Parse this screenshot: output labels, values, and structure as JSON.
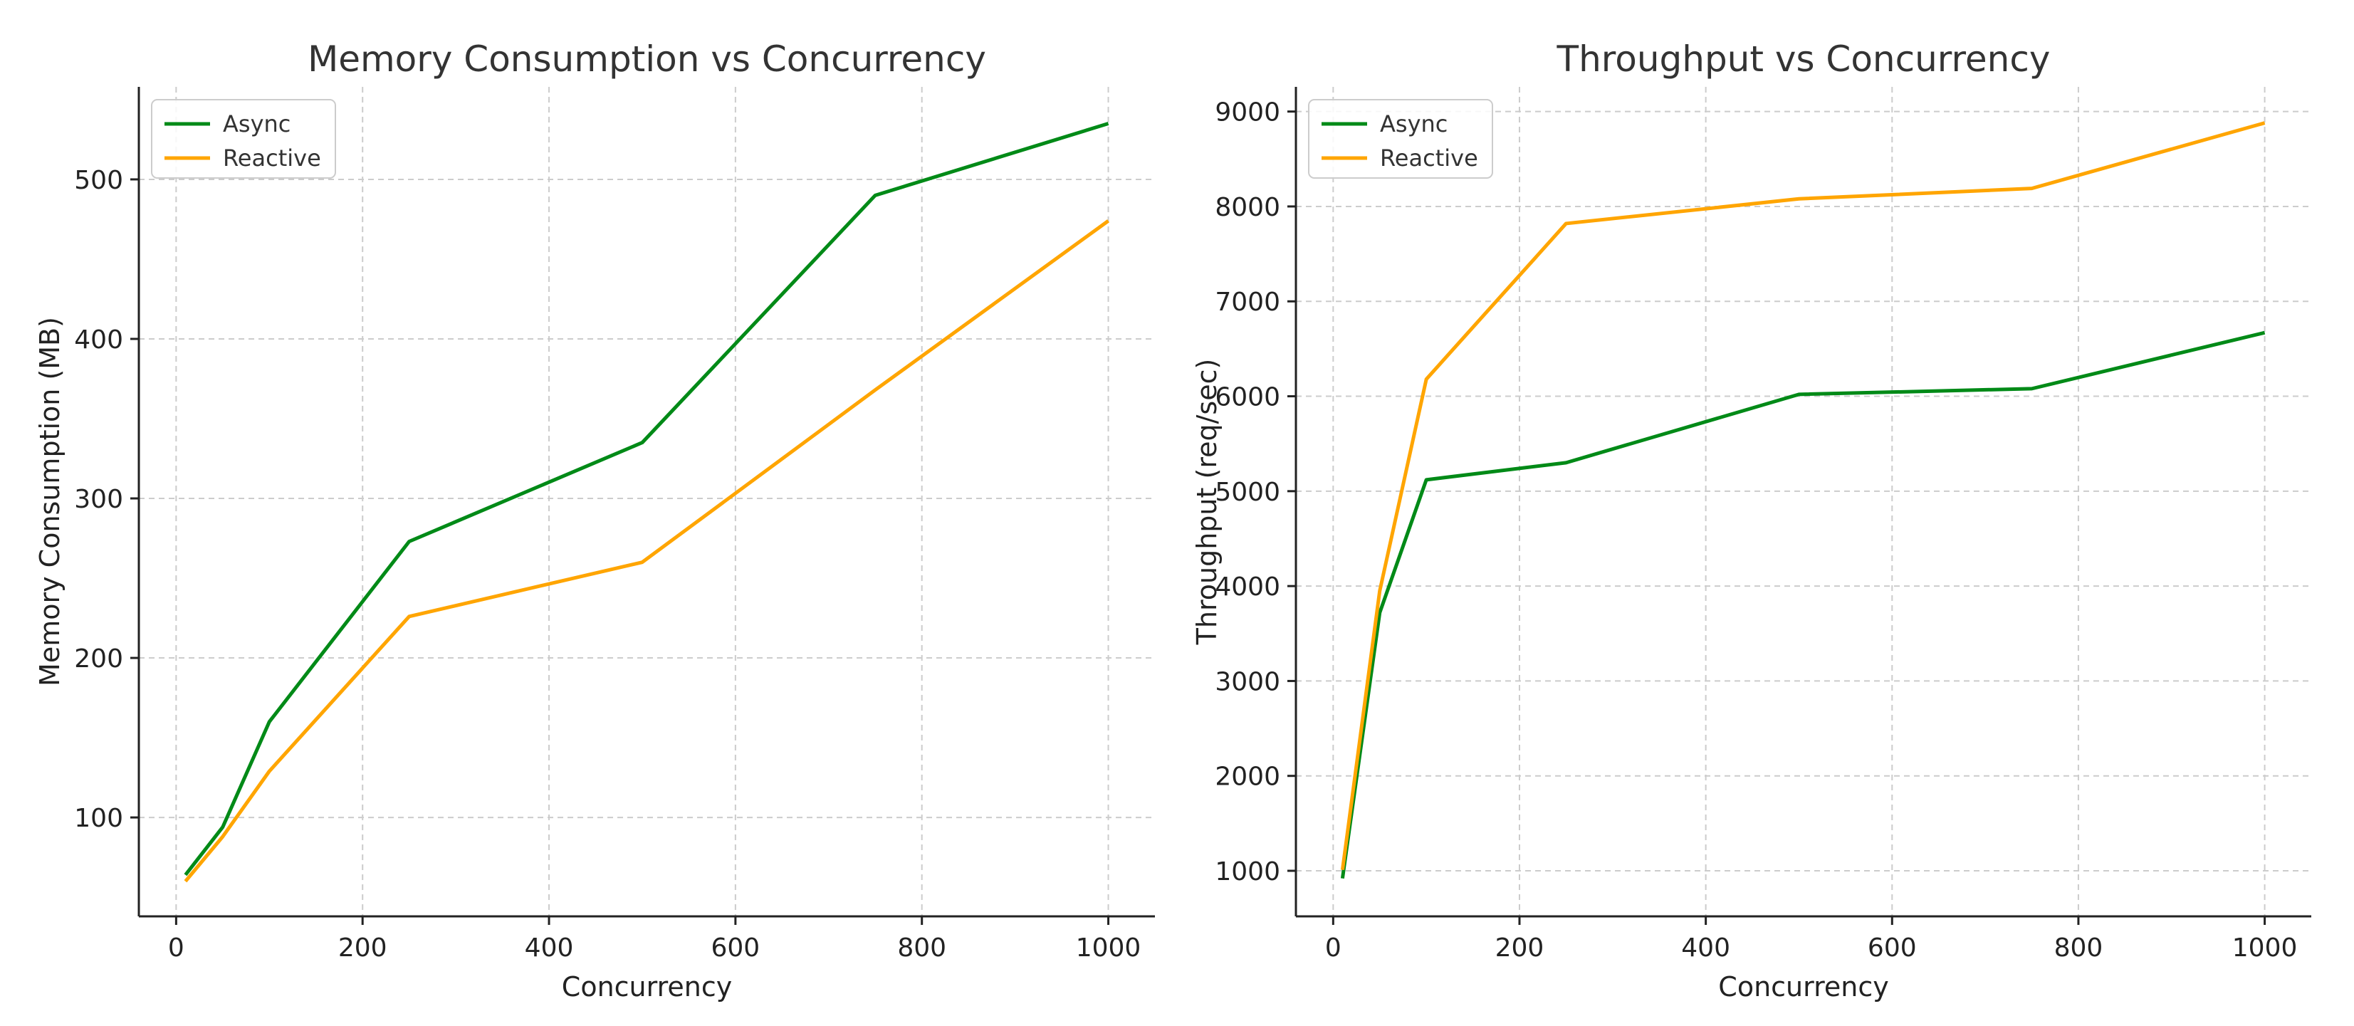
{
  "chart_data": [
    {
      "type": "line",
      "title": "Memory Consumption vs Concurrency",
      "xlabel": "Concurrency",
      "ylabel": "Memory Consumption (MB)",
      "x": [
        10,
        50,
        100,
        250,
        500,
        750,
        1000
      ],
      "xlim": [
        -40,
        1050
      ],
      "ylim": [
        38,
        558
      ],
      "xticks": [
        0,
        200,
        400,
        600,
        800,
        1000
      ],
      "yticks": [
        100,
        200,
        300,
        400,
        500
      ],
      "grid": true,
      "legend_position": "top-left",
      "series": [
        {
          "name": "Async",
          "color": "#008a17",
          "values": [
            64,
            94,
            160,
            273,
            335,
            490,
            535
          ]
        },
        {
          "name": "Reactive",
          "color": "#ffa500",
          "values": [
            60,
            88,
            129,
            226,
            260,
            368,
            474
          ]
        }
      ]
    },
    {
      "type": "line",
      "title": "Throughput vs Concurrency",
      "xlabel": "Concurrency",
      "ylabel": "Throughput (req/sec)",
      "x": [
        10,
        50,
        100,
        250,
        500,
        750,
        1000
      ],
      "xlim": [
        -40,
        1050
      ],
      "ylim": [
        520,
        9260
      ],
      "xticks": [
        0,
        200,
        400,
        600,
        800,
        1000
      ],
      "yticks": [
        1000,
        2000,
        3000,
        4000,
        5000,
        6000,
        7000,
        8000,
        9000
      ],
      "grid": true,
      "legend_position": "top-left",
      "series": [
        {
          "name": "Async",
          "color": "#008a17",
          "values": [
            920,
            3720,
            5120,
            5300,
            6020,
            6080,
            6670
          ]
        },
        {
          "name": "Reactive",
          "color": "#ffa500",
          "values": [
            1010,
            3950,
            6180,
            7820,
            8080,
            8190,
            8880
          ]
        }
      ]
    }
  ]
}
